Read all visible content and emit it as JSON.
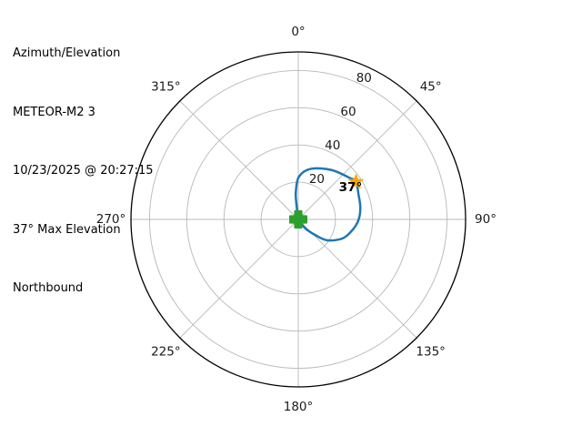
{
  "header": {
    "lines": [
      "Azimuth/Elevation",
      "METEOR-M2 3",
      "10/23/2025 @ 20:27:15",
      "37° Max Elevation",
      "Northbound"
    ]
  },
  "chart_data": {
    "type": "line",
    "projection": "polar",
    "description": "Satellite pass azimuth/elevation polar track; azimuth clockwise from North at top, elevation 0° at center to 90° at outer edge",
    "azimuth_ticks": [
      0,
      45,
      90,
      135,
      180,
      225,
      270,
      315
    ],
    "azimuth_tick_labels": [
      "0°",
      "45°",
      "90°",
      "135°",
      "180°",
      "225°",
      "270°",
      "315°"
    ],
    "elevation_ring_values": [
      20,
      40,
      60,
      80
    ],
    "elevation_ring_labels": [
      "20",
      "40",
      "60",
      "80"
    ],
    "elevation_range": [
      0,
      90
    ],
    "grid": true,
    "series": [
      {
        "name": "pass-track",
        "color": "#1f77b4",
        "points_az_el": [
          [
            152,
            0
          ],
          [
            142,
            6
          ],
          [
            133,
            12
          ],
          [
            126,
            19
          ],
          [
            113,
            26
          ],
          [
            100,
            30
          ],
          [
            90,
            32.5
          ],
          [
            79,
            34
          ],
          [
            68,
            35
          ],
          [
            57,
            37
          ],
          [
            51,
            35.5
          ],
          [
            34,
            32
          ],
          [
            14,
            28
          ],
          [
            1,
            23
          ],
          [
            355,
            15
          ],
          [
            353,
            8
          ],
          [
            352,
            0
          ]
        ]
      }
    ],
    "markers": [
      {
        "name": "pass-start-marker",
        "shape": "plus",
        "color": "#2ca02c",
        "az": 152,
        "el": 0
      },
      {
        "name": "max-elevation-marker",
        "shape": "star",
        "color": "#ffa500",
        "az": 57,
        "el": 37,
        "label": "37°"
      }
    ],
    "annotation": {
      "text": "37°",
      "bold": true,
      "color": "#000000"
    },
    "colors": {
      "grid": "#b8b8b8",
      "outline": "#000000",
      "tick_labels": "#1a1a1a",
      "background": "#ffffff"
    }
  }
}
